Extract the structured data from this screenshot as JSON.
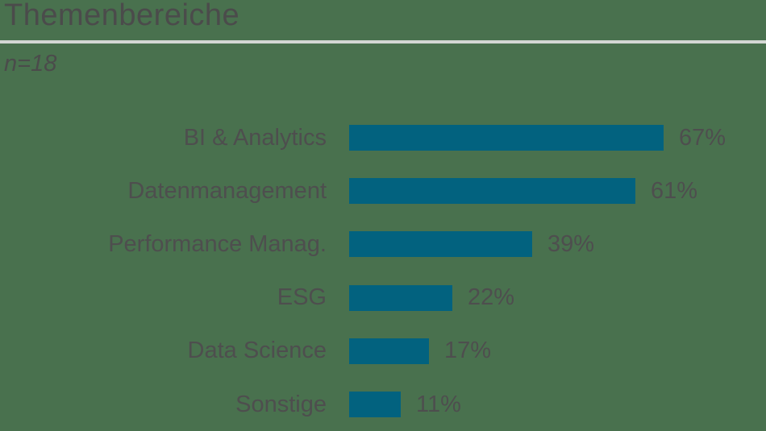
{
  "header": {
    "title": "Themenbereiche",
    "sample_size": "n=18"
  },
  "colors": {
    "background": "#49714E",
    "bar": "#02627F",
    "text": "#4B4B4B",
    "divider": "#D3D7D3"
  },
  "chart_data": {
    "type": "bar",
    "orientation": "horizontal",
    "title": "Themenbereiche",
    "subtitle": "n=18",
    "categories": [
      "BI & Analytics",
      "Datenmanagement",
      "Performance Manag.",
      "ESG",
      "Data Science",
      "Sonstige"
    ],
    "values": [
      67,
      61,
      39,
      22,
      17,
      11
    ],
    "value_labels": [
      "67%",
      "61%",
      "39%",
      "22%",
      "17%",
      "11%"
    ],
    "unit": "%",
    "xlim": [
      0,
      100
    ],
    "grid": false,
    "legend": false,
    "bar_color": "#02627F"
  }
}
